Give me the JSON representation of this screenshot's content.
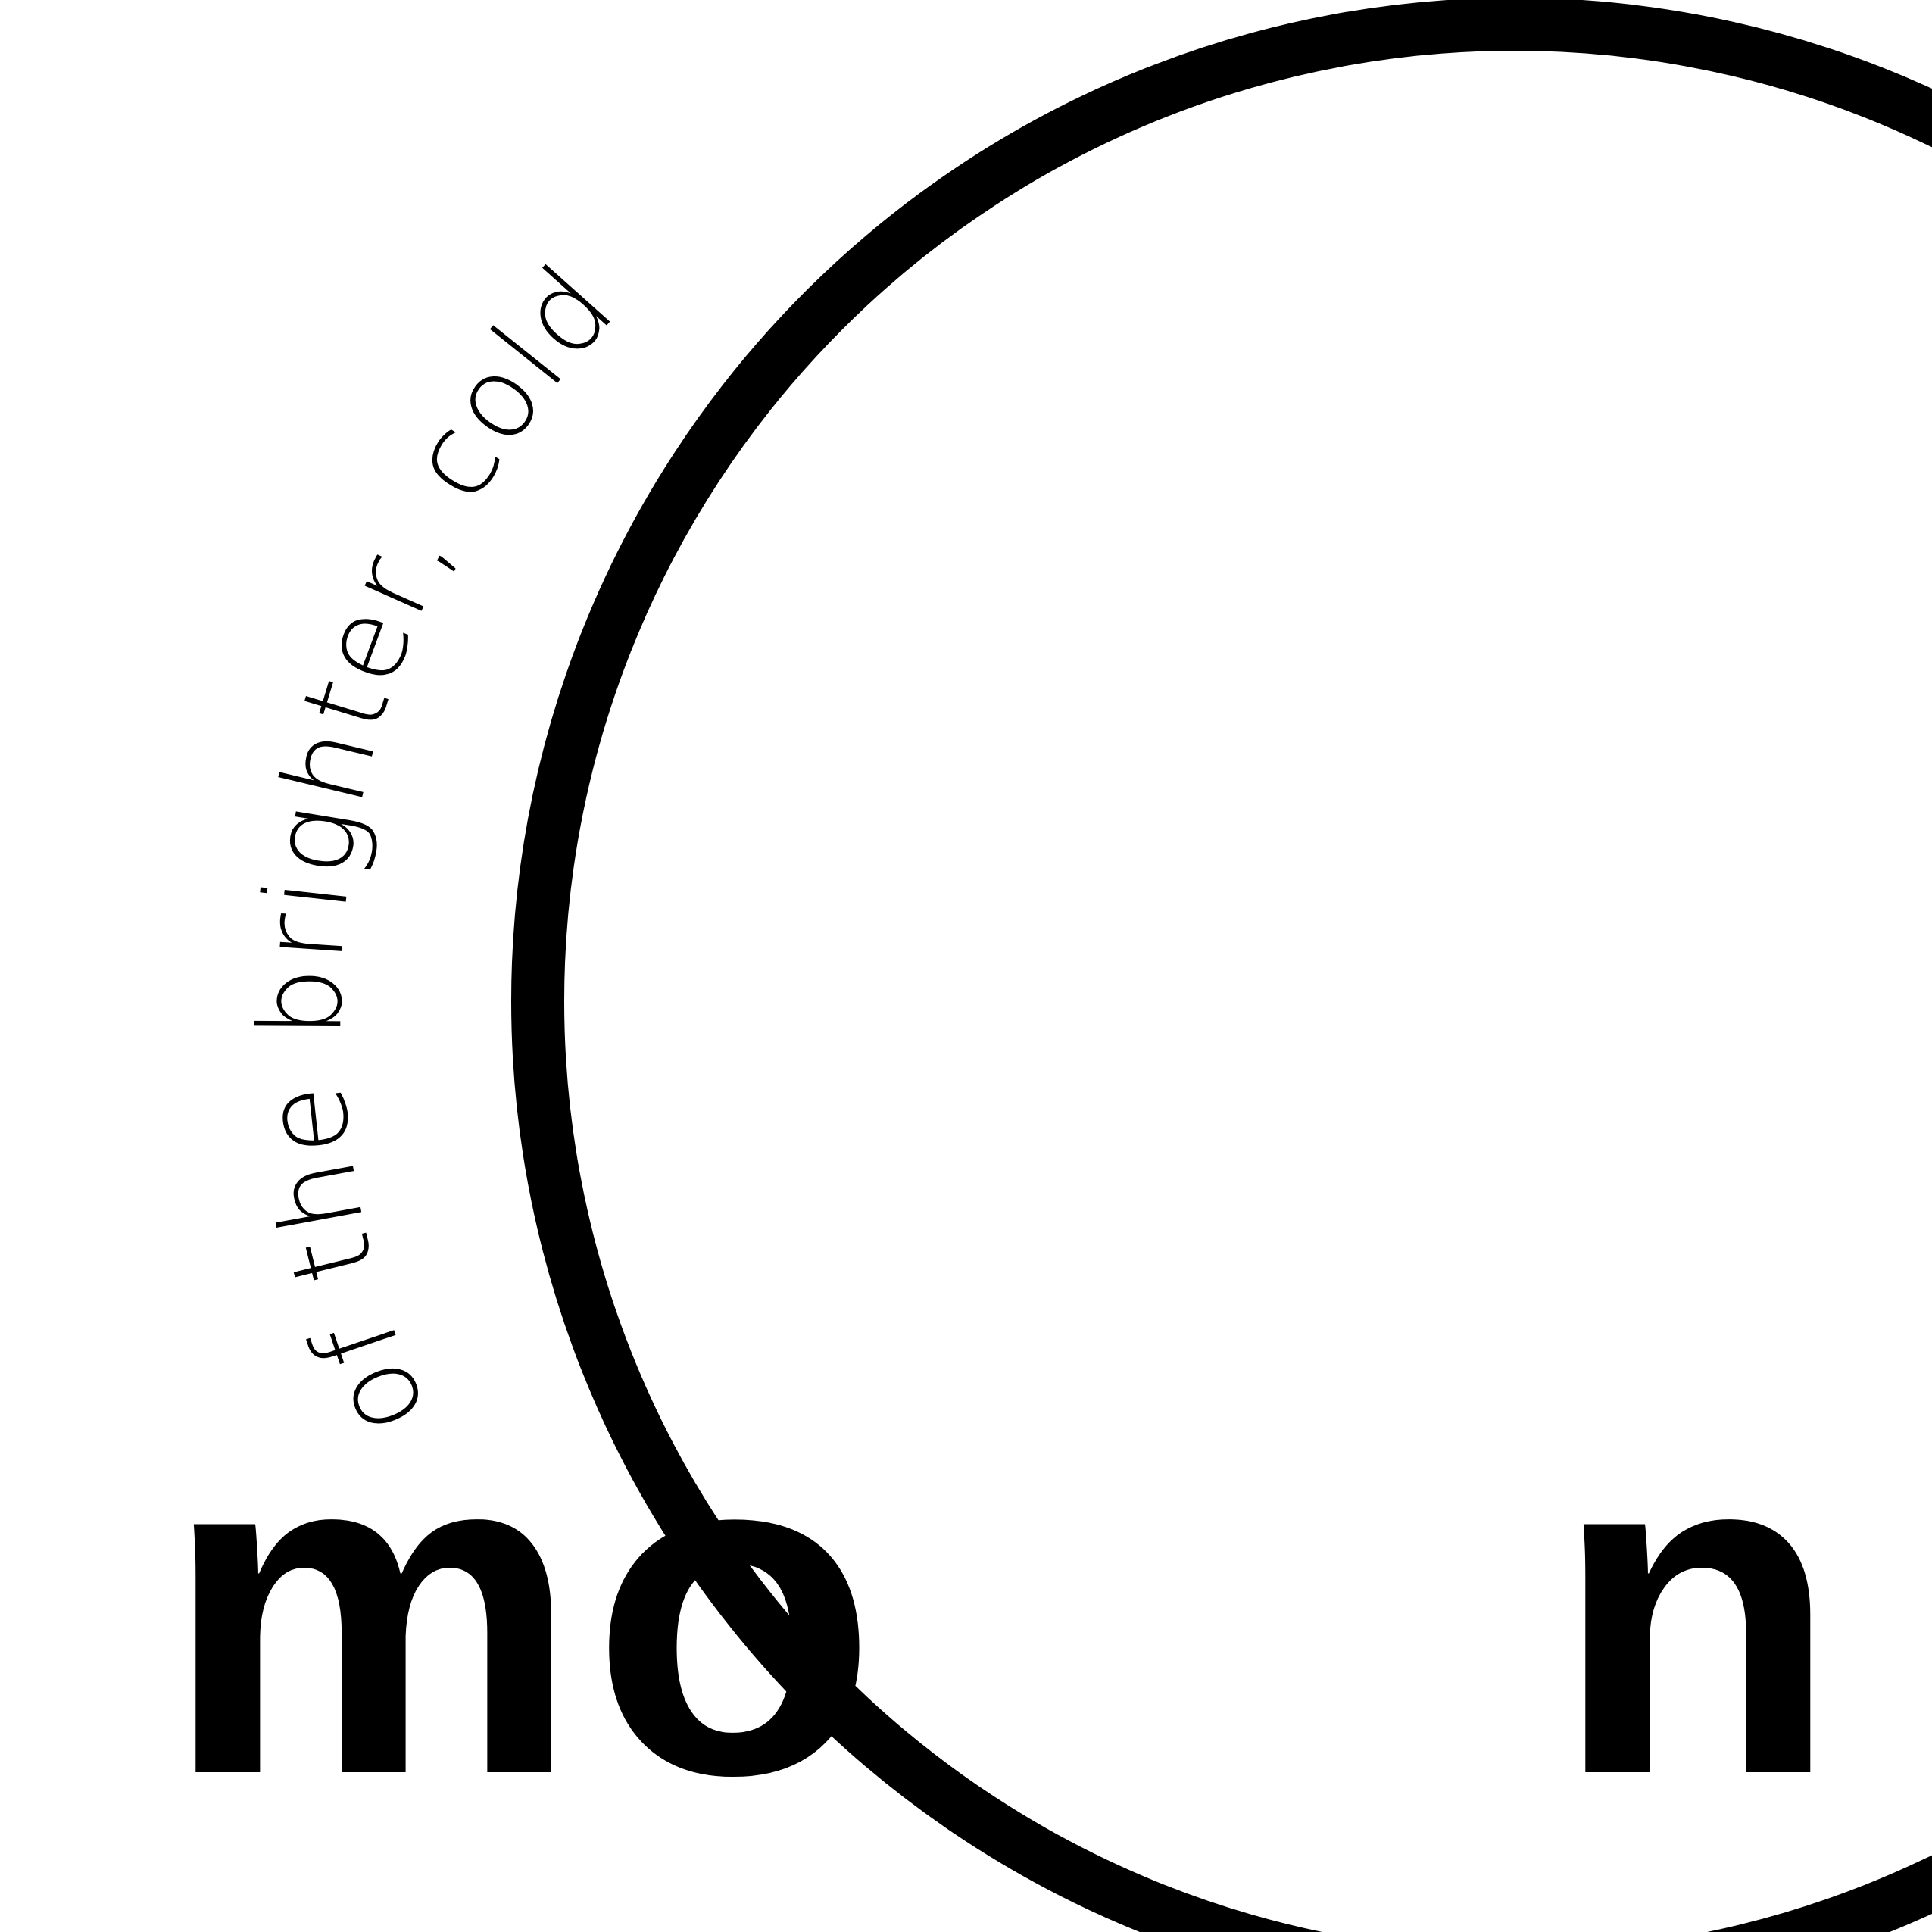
{
  "poster": {
    "background_color": "#ffffff",
    "ink_color": "#000000",
    "arc_text": "of the brighter, cold",
    "word": {
      "letter_m": "m",
      "letter_o": "o",
      "letter_n": "n"
    }
  }
}
